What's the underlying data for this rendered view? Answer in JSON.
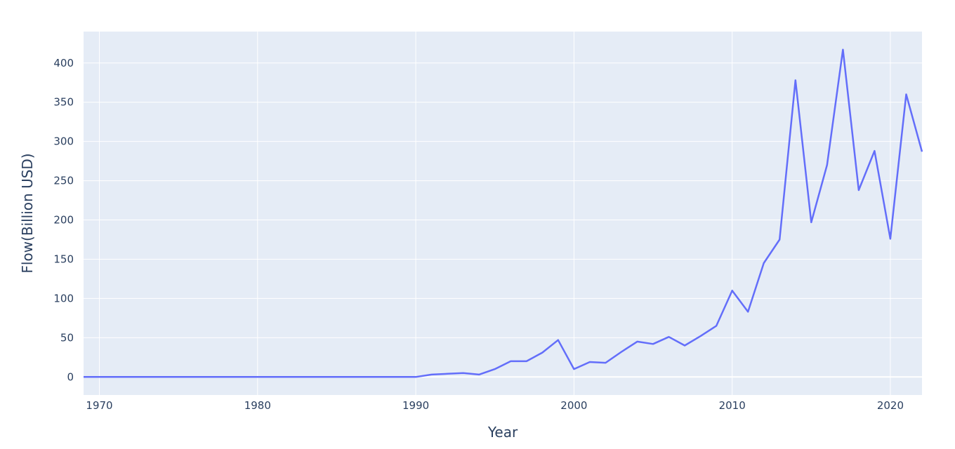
{
  "chart_data": {
    "type": "line",
    "title": "",
    "xlabel": "Year",
    "ylabel": "Flow(Billion USD)",
    "xlim": [
      1969,
      2022
    ],
    "ylim": [
      -23,
      440
    ],
    "x_ticks": [
      1970,
      1980,
      1990,
      2000,
      2010,
      2020
    ],
    "y_ticks": [
      0,
      50,
      100,
      150,
      200,
      250,
      300,
      350,
      400
    ],
    "grid": true,
    "legend": "none",
    "colors": {
      "plot_bg": "#e5ecf6",
      "grid": "#ffffff",
      "line": "#636efa",
      "text": "#2a3f5f"
    },
    "series": [
      {
        "x": [
          1969,
          1970,
          1971,
          1972,
          1973,
          1974,
          1975,
          1976,
          1977,
          1978,
          1979,
          1980,
          1981,
          1982,
          1983,
          1984,
          1985,
          1986,
          1987,
          1988,
          1989,
          1990,
          1991,
          1992,
          1993,
          1994,
          1995,
          1996,
          1997,
          1998,
          1999,
          2000,
          2001,
          2002,
          2003,
          2004,
          2005,
          2006,
          2007,
          2008,
          2009,
          2010,
          2011,
          2012,
          2013,
          2014,
          2015,
          2016,
          2017,
          2018,
          2019,
          2020,
          2021,
          2022
        ],
        "y": [
          0,
          0,
          0,
          0,
          0,
          0,
          0,
          0,
          0,
          0,
          0,
          0,
          0,
          0,
          0,
          0,
          0,
          0,
          0,
          0,
          0,
          0,
          3,
          4,
          5,
          3,
          10,
          20,
          20,
          31,
          47,
          10,
          19,
          18,
          32,
          45,
          42,
          51,
          40,
          52,
          65,
          110,
          83,
          145,
          175,
          378,
          197,
          270,
          417,
          238,
          288,
          176,
          360,
          287
        ]
      }
    ]
  }
}
